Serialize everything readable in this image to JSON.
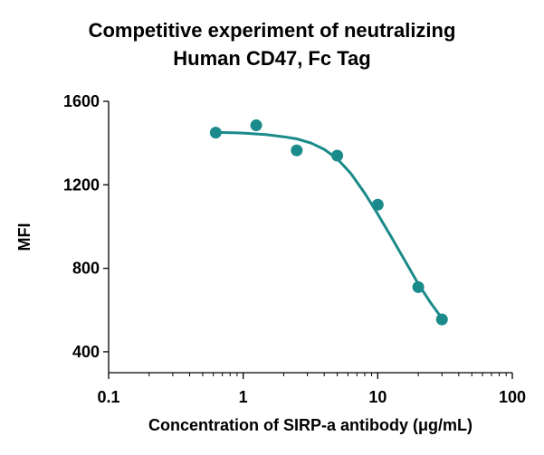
{
  "chart_data": {
    "type": "scatter",
    "title": "Competitive experiment of neutralizing\nHuman CD47, Fc Tag",
    "xlabel": "Concentration of SIRP-a antibody (μg/mL)",
    "ylabel": "MFI",
    "x_scale": "log",
    "xlim": [
      0.1,
      100
    ],
    "ylim": [
      300,
      1600
    ],
    "x_ticks": [
      0.1,
      1,
      10,
      100
    ],
    "x_tick_labels": [
      "0.1",
      "1",
      "10",
      "100"
    ],
    "y_ticks": [
      400,
      800,
      1200,
      1600
    ],
    "y_tick_labels": [
      "400",
      "800",
      "1200",
      "1600"
    ],
    "grid": false,
    "legend": "none",
    "series": [
      {
        "points": [
          {
            "x": 0.625,
            "y": 1450
          },
          {
            "x": 1.25,
            "y": 1485
          },
          {
            "x": 2.5,
            "y": 1365
          },
          {
            "x": 5,
            "y": 1340
          },
          {
            "x": 10,
            "y": 1105
          },
          {
            "x": 20,
            "y": 710
          },
          {
            "x": 30,
            "y": 555
          }
        ],
        "fit_curve": [
          {
            "x": 0.625,
            "y": 1452
          },
          {
            "x": 1,
            "y": 1448
          },
          {
            "x": 1.5,
            "y": 1440
          },
          {
            "x": 2,
            "y": 1430
          },
          {
            "x": 2.5,
            "y": 1420
          },
          {
            "x": 3.2,
            "y": 1400
          },
          {
            "x": 4,
            "y": 1370
          },
          {
            "x": 5,
            "y": 1325
          },
          {
            "x": 6.3,
            "y": 1255
          },
          {
            "x": 8,
            "y": 1160
          },
          {
            "x": 10,
            "y": 1060
          },
          {
            "x": 12.6,
            "y": 950
          },
          {
            "x": 15.8,
            "y": 840
          },
          {
            "x": 20,
            "y": 725
          },
          {
            "x": 25,
            "y": 630
          },
          {
            "x": 30,
            "y": 560
          }
        ]
      }
    ],
    "colors": {
      "series": "#1a8a8a",
      "axis": "#000000"
    }
  }
}
